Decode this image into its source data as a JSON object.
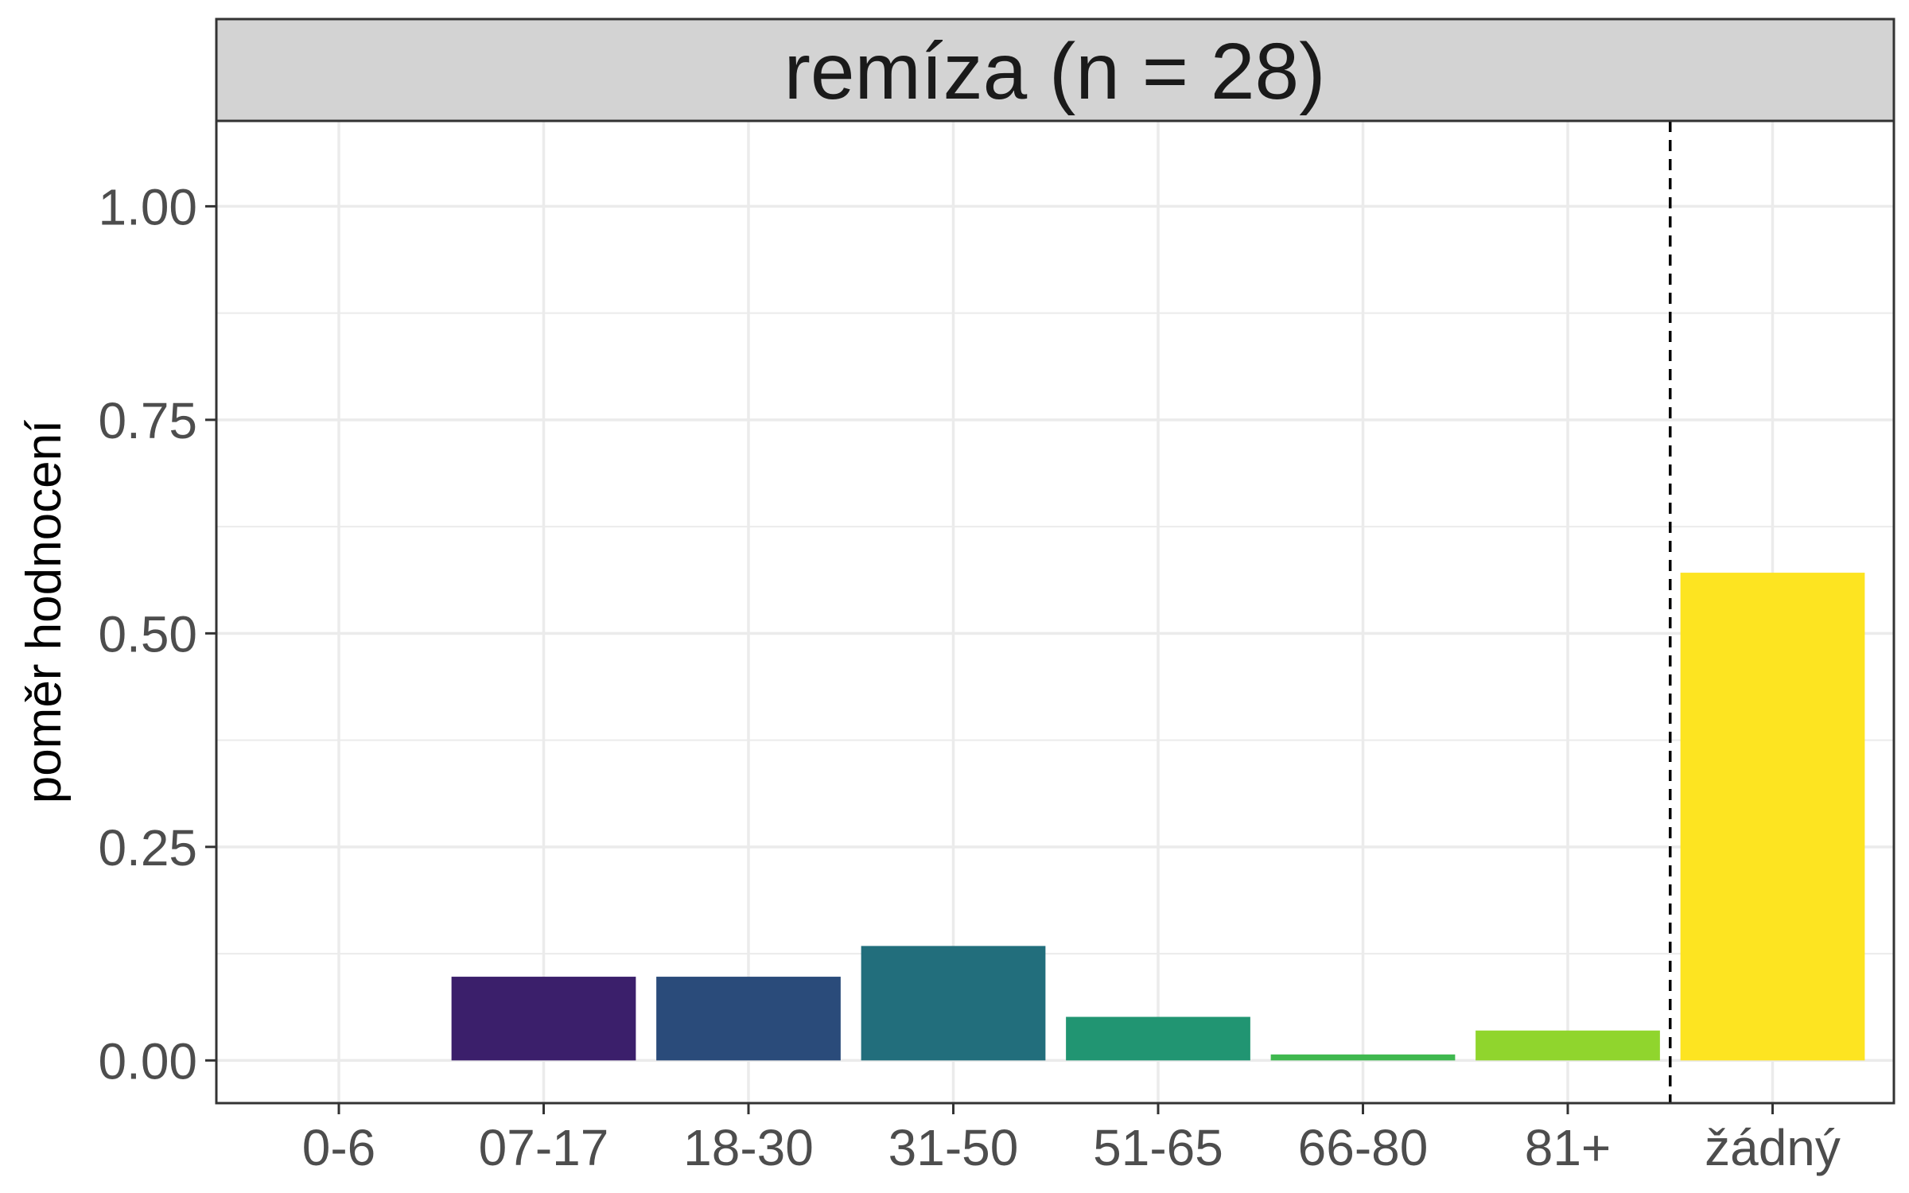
{
  "chart_data": {
    "type": "bar",
    "facet_title": "remíza (n = 28)",
    "xlabel": "",
    "ylabel": "poměr hodnocení",
    "categories": [
      "0-6",
      "07-17",
      "18-30",
      "31-50",
      "51-65",
      "66-80",
      "81+",
      "žádný"
    ],
    "values": [
      0.0,
      0.098,
      0.098,
      0.134,
      0.051,
      0.007,
      0.035,
      0.571
    ],
    "colors": [
      "#440154",
      "#3b1f6b",
      "#2a4b7a",
      "#226e7c",
      "#219572",
      "#3fb84f",
      "#90d52d",
      "#fde421"
    ],
    "ylim": [
      -0.05,
      1.1
    ],
    "yticks": [
      "0.00",
      "0.25",
      "0.50",
      "0.75",
      "1.00"
    ],
    "ytick_values": [
      0,
      0.25,
      0.5,
      0.75,
      1.0
    ],
    "reference_line": {
      "between": [
        "81+",
        "žádný"
      ],
      "style": "dashed",
      "color": "#000000"
    },
    "grid": true,
    "legend": "none",
    "theme": {
      "panel_border": "#333333",
      "strip_fill": "#d3d3d3",
      "grid_color": "#ebebeb"
    }
  }
}
